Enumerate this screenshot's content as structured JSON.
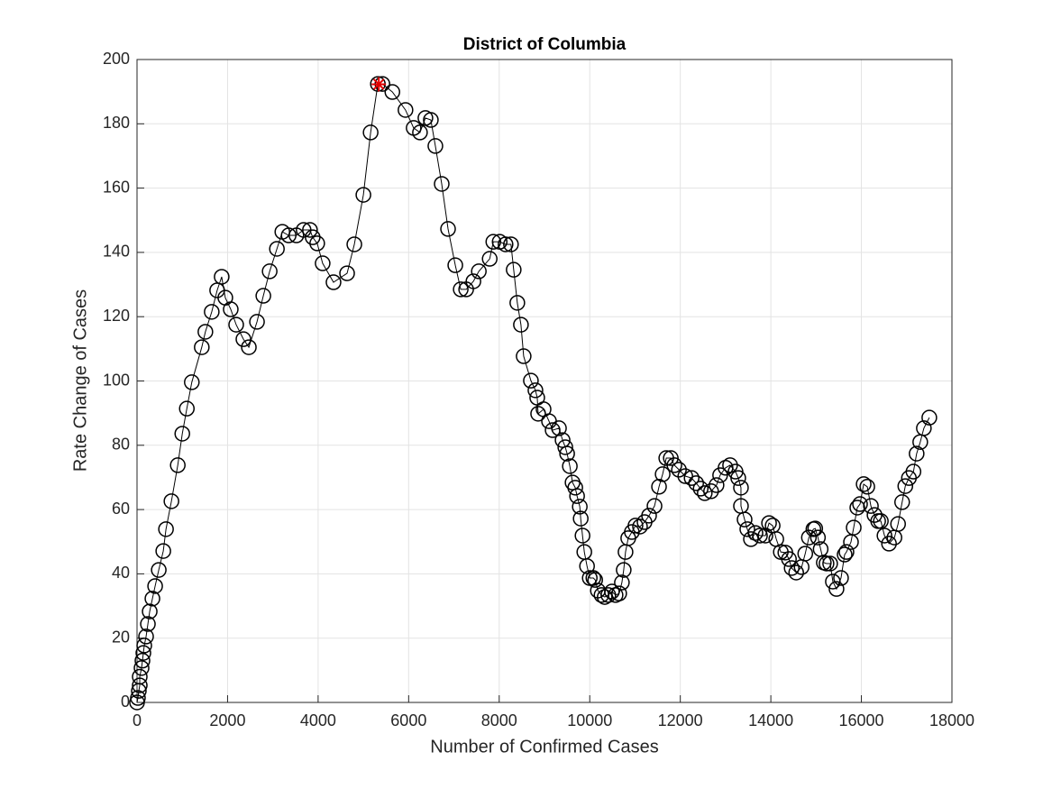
{
  "chart_data": {
    "type": "line",
    "title": "District of Columbia",
    "xlabel": "Number of Confirmed Cases",
    "ylabel": "Rate Change of Cases",
    "xlim": [
      0,
      18000
    ],
    "xticks": [
      0,
      2000,
      4000,
      6000,
      8000,
      10000,
      12000,
      14000,
      16000,
      18000
    ],
    "ylim": [
      0,
      200
    ],
    "yticks": [
      0,
      20,
      40,
      60,
      80,
      100,
      120,
      140,
      160,
      180,
      200
    ],
    "grid": true,
    "color": "#000000",
    "marker": "circle",
    "x": [
      0,
      20,
      40,
      60,
      60,
      100,
      120,
      140,
      160,
      200,
      240,
      280,
      340,
      400,
      480,
      580,
      640,
      760,
      900,
      1000,
      1100,
      1210,
      1430,
      1510,
      1650,
      1770,
      1870,
      1950,
      2070,
      2190,
      2350,
      2470,
      2650,
      2790,
      2930,
      3090,
      3210,
      3350,
      3520,
      3680,
      3820,
      3880,
      3980,
      4100,
      4340,
      4640,
      4800,
      5000,
      5160,
      5320,
      5420,
      5640,
      5930,
      6110,
      6250,
      6370,
      6490,
      6590,
      6730,
      6870,
      7030,
      7150,
      7270,
      7430,
      7550,
      7790,
      7870,
      8010,
      8140,
      8260,
      8320,
      8400,
      8480,
      8540,
      8700,
      8800,
      8840,
      8860,
      8980,
      9100,
      9180,
      9320,
      9400,
      9460,
      9500,
      9560,
      9620,
      9680,
      9720,
      9780,
      9800,
      9840,
      9880,
      9940,
      10000,
      10080,
      10120,
      10180,
      10260,
      10330,
      10410,
      10490,
      10570,
      10650,
      10710,
      10750,
      10790,
      10850,
      10930,
      11010,
      11110,
      11210,
      11310,
      11430,
      11530,
      11610,
      11690,
      11790,
      11870,
      11970,
      12110,
      12250,
      12350,
      12450,
      12540,
      12680,
      12800,
      12880,
      13000,
      13100,
      13220,
      13280,
      13340,
      13340,
      13420,
      13480,
      13560,
      13660,
      13760,
      13880,
      13960,
      14040,
      14120,
      14220,
      14320,
      14400,
      14460,
      14560,
      14680,
      14760,
      14840,
      14940,
      14980,
      15040,
      15100,
      15170,
      15230,
      15310,
      15370,
      15450,
      15550,
      15630,
      15670,
      15770,
      15830,
      15910,
      15970,
      16050,
      16130,
      16210,
      16290,
      16370,
      16430,
      16510,
      16610,
      16730,
      16810,
      16900,
      16970,
      17050,
      17150,
      17220,
      17300,
      17380,
      17500
    ],
    "values": [
      0,
      1.4,
      3.6,
      5.3,
      8,
      10.7,
      13,
      15.4,
      17.7,
      20.5,
      24.4,
      28.3,
      32.3,
      36.2,
      41.2,
      47.1,
      53.9,
      62.6,
      73.8,
      83.6,
      91.4,
      99.6,
      110.5,
      115.3,
      121.5,
      128.2,
      132.4,
      125.9,
      122.3,
      117.5,
      113,
      110.5,
      118.4,
      126.5,
      134.1,
      141.1,
      146.4,
      145.3,
      145.3,
      147,
      147,
      144.7,
      142.8,
      136.6,
      130.7,
      133.5,
      142.5,
      157.9,
      177.3,
      192.4,
      192.4,
      189.9,
      184.3,
      178.7,
      177.3,
      181.8,
      181.2,
      173.1,
      161.3,
      147.3,
      136,
      128.5,
      128.5,
      131,
      134.1,
      138,
      143.3,
      143.3,
      142.5,
      142.5,
      134.6,
      124.3,
      117.5,
      107.7,
      100.1,
      97.1,
      94.8,
      89.8,
      91.2,
      87.5,
      84.7,
      85.3,
      81.6,
      79.4,
      77.4,
      73.5,
      68.4,
      66.8,
      64.2,
      60.9,
      57.2,
      51.9,
      46.8,
      42.4,
      38.7,
      38.7,
      38.1,
      34.8,
      33.4,
      32.8,
      33.4,
      34.5,
      33.4,
      33.9,
      37.3,
      41.2,
      46.8,
      51.1,
      53,
      55,
      54.7,
      56.1,
      58.1,
      61.1,
      67.1,
      71,
      76,
      76,
      73.8,
      72.4,
      70.4,
      69.8,
      68.2,
      66.5,
      65.1,
      65.7,
      67.6,
      70.7,
      73,
      73.8,
      71.8,
      69.8,
      66.8,
      61.1,
      56.9,
      53.9,
      50.8,
      52.7,
      51.9,
      51.9,
      55.8,
      55,
      50.8,
      46.8,
      46.6,
      44.6,
      41.8,
      40.4,
      42.1,
      46.3,
      51.3,
      53.9,
      54.1,
      51.3,
      47.7,
      43.5,
      43.2,
      43.2,
      37.6,
      35.3,
      38.7,
      46,
      46.8,
      49.9,
      54.4,
      60.6,
      61.7,
      67.9,
      67.1,
      61.1,
      58.3,
      56.4,
      56.4,
      51.9,
      49.4,
      51.3,
      55.5,
      62.3,
      67.3,
      69.8,
      71.8,
      77.4,
      81,
      85.3,
      88.6
    ],
    "highlight": {
      "x": 5340,
      "y": 192.3,
      "color": "#e00000"
    }
  }
}
